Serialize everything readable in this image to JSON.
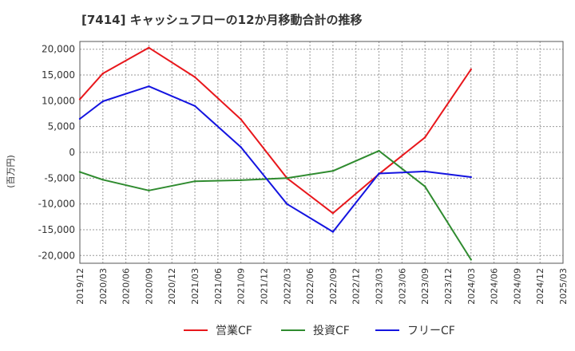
{
  "chart_data": {
    "type": "line",
    "title": "[7414]  キャッシュフローの12か月移動合計の推移",
    "xlabel": "",
    "ylabel": "(百万円)",
    "ylim": [
      -21500,
      21500
    ],
    "yticks": [
      20000,
      15000,
      10000,
      5000,
      0,
      -5000,
      -10000,
      -15000,
      -20000
    ],
    "ytick_labels": [
      "20,000",
      "15,000",
      "10,000",
      "5,000",
      "0",
      "-5,000",
      "-10,000",
      "-15,000",
      "-20,000"
    ],
    "x": [
      "2019/12",
      "2020/03",
      "2020/06",
      "2020/09",
      "2020/12",
      "2021/03",
      "2021/06",
      "2021/09",
      "2021/12",
      "2022/03",
      "2022/06",
      "2022/09",
      "2022/12",
      "2023/03",
      "2023/06",
      "2023/09",
      "2023/12",
      "2024/03",
      "2024/06",
      "2024/09",
      "2024/12",
      "2025/03"
    ],
    "grid": true,
    "legend_position": "bottom",
    "series": [
      {
        "name": "営業CF",
        "color": "#e8171c",
        "points": [
          {
            "x": "2019/12",
            "y": 10300
          },
          {
            "x": "2020/03",
            "y": 15300
          },
          {
            "x": "2020/09",
            "y": 20300
          },
          {
            "x": "2021/03",
            "y": 14600
          },
          {
            "x": "2021/09",
            "y": 6400
          },
          {
            "x": "2022/03",
            "y": -5000
          },
          {
            "x": "2022/09",
            "y": -11800
          },
          {
            "x": "2023/03",
            "y": -4200
          },
          {
            "x": "2023/09",
            "y": 2900
          },
          {
            "x": "2024/03",
            "y": 16100
          }
        ]
      },
      {
        "name": "投資CF",
        "color": "#2f8b2f",
        "points": [
          {
            "x": "2019/12",
            "y": -3800
          },
          {
            "x": "2020/03",
            "y": -5300
          },
          {
            "x": "2020/09",
            "y": -7400
          },
          {
            "x": "2021/03",
            "y": -5600
          },
          {
            "x": "2021/09",
            "y": -5400
          },
          {
            "x": "2022/03",
            "y": -5000
          },
          {
            "x": "2022/09",
            "y": -3600
          },
          {
            "x": "2023/03",
            "y": 300
          },
          {
            "x": "2023/09",
            "y": -6600
          },
          {
            "x": "2024/03",
            "y": -20800
          }
        ]
      },
      {
        "name": "フリーCF",
        "color": "#1414e0",
        "points": [
          {
            "x": "2019/12",
            "y": 6500
          },
          {
            "x": "2020/03",
            "y": 9900
          },
          {
            "x": "2020/09",
            "y": 12800
          },
          {
            "x": "2021/03",
            "y": 9000
          },
          {
            "x": "2021/09",
            "y": 1000
          },
          {
            "x": "2022/03",
            "y": -10000
          },
          {
            "x": "2022/09",
            "y": -15400
          },
          {
            "x": "2023/03",
            "y": -4100
          },
          {
            "x": "2023/09",
            "y": -3700
          },
          {
            "x": "2024/03",
            "y": -4800
          }
        ]
      }
    ]
  }
}
